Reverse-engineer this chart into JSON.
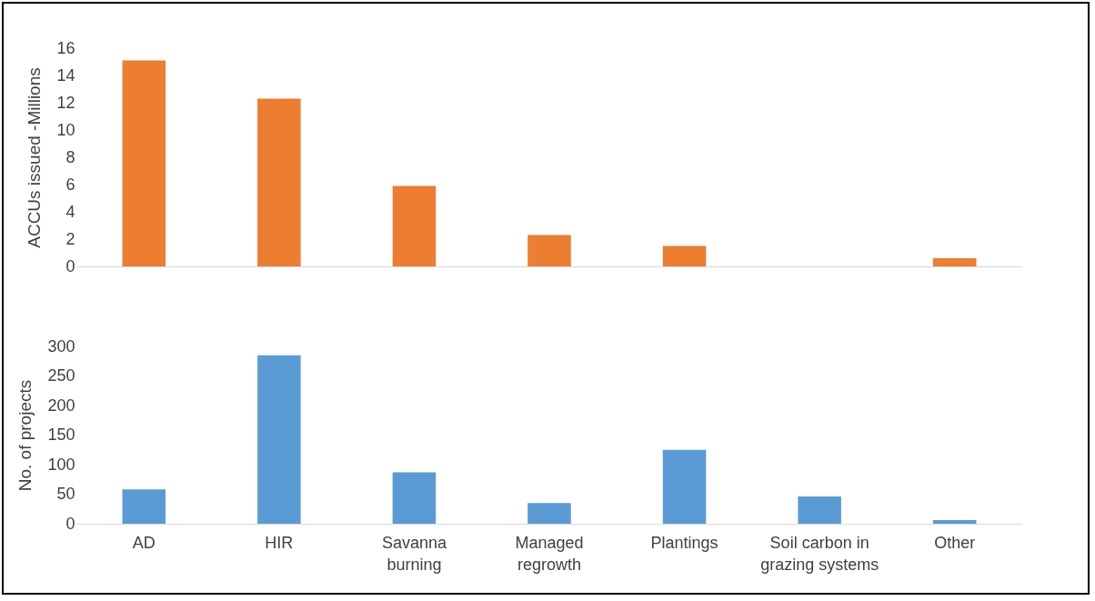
{
  "chart_data": [
    {
      "type": "bar",
      "ylabel": "ACCUs issued -Millions",
      "categories": [
        null,
        null,
        null,
        null,
        null,
        null,
        null
      ],
      "values": [
        15.1,
        12.3,
        5.9,
        2.3,
        1.5,
        0,
        0.6
      ],
      "color": "#ed7d31",
      "ylim": [
        0,
        16
      ],
      "yticks": [
        0,
        2,
        4,
        6,
        8,
        10,
        12,
        14,
        16
      ],
      "tick_labels": "y",
      "grid": false
    },
    {
      "type": "bar",
      "ylabel": "No. of projects",
      "categories": [
        "AD",
        "HIR",
        "Savanna burning",
        "Managed regrowth",
        "Plantings",
        "Soil carbon in grazing systems",
        "Other"
      ],
      "values": [
        58,
        285,
        87,
        35,
        125,
        46,
        6
      ],
      "color": "#5b9bd5",
      "ylim": [
        0,
        300
      ],
      "yticks": [
        0,
        50,
        100,
        150,
        200,
        250,
        300
      ],
      "grid": false
    }
  ]
}
